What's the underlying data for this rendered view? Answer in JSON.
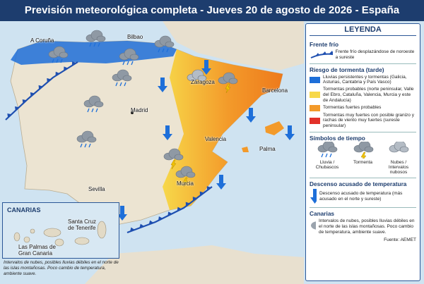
{
  "title": "Previsión meteorológica completa - Jueves 20 de agosto de 2026 - España",
  "map": {
    "cities": [
      "A Coruña",
      "Bilbao",
      "Zaragoza",
      "Barcelona",
      "Madrid",
      "Valencia",
      "Palma",
      "Sevilla",
      "Murcia"
    ]
  },
  "canarias_inset": {
    "title": "CANARIAS",
    "cities": [
      "Santa Cruz de Tenerife",
      "Las Palmas de Gran Canaria"
    ],
    "note": "Intervalos de nubes, posibles lluvias débiles en el norte de las islas montañosas. Poco cambio de temperatura, ambiente suave."
  },
  "legend": {
    "title": "LEYENDA",
    "front": {
      "heading": "Frente frío",
      "text": "Frente frío desplazándose de noroeste a sureste"
    },
    "storm_risk": {
      "heading": "Riesgo de tormenta (tarde)",
      "items": [
        {
          "color": "#1e6fd9",
          "text": "Lluvias persistentes y tormentas (Galicia, Asturias, Cantabria y País Vasco)"
        },
        {
          "color": "#f7d84a",
          "text": "Tormentas probables (norte peninsular, Valle del Ebro, Cataluña, Valencia, Murcia y este de Andalucía)"
        },
        {
          "color": "#f39a2a",
          "text": "Tormentas fuertes probables"
        },
        {
          "color": "#e2312a",
          "text": "Tormentas muy fuertes con posible granizo y rachas de viento muy fuertes (sureste peninsular)"
        }
      ]
    },
    "symbols": {
      "heading": "Símbolos de tiempo",
      "items": [
        "Lluvia / Chubascos",
        "Tormenta",
        "Nubes / Intervalos nubosos"
      ]
    },
    "temperature": {
      "heading": "Descenso acusado de temperatura",
      "text": "Descenso acusado de temperatura (más acusado en el norte y sureste)"
    },
    "canarias": {
      "heading": "Canarias",
      "text": "Intervalos de nubes, posibles lluvias débiles en el norte de las islas montañosas. Poco cambio de temperatura, ambiente suave."
    },
    "source": "Fuente: AEMET"
  }
}
